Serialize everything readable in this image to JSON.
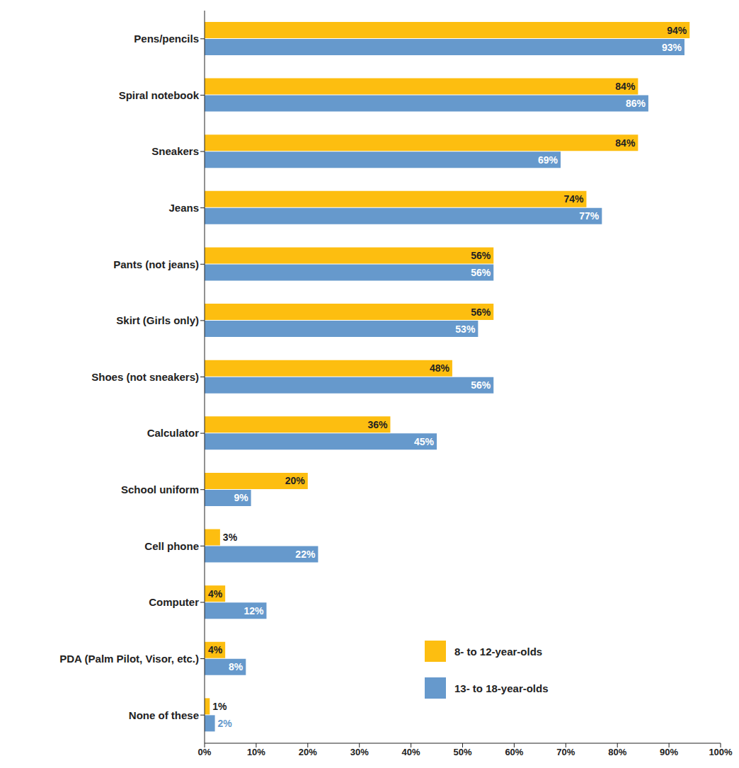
{
  "chart_data": {
    "type": "bar",
    "orientation": "horizontal",
    "grid": false,
    "data_labels": true,
    "legend": "lower right",
    "categories": [
      "Pens/pencils",
      "Spiral notebook",
      "Sneakers",
      "Jeans",
      "Pants (not jeans)",
      "Skirt (Girls only)",
      "Shoes (not sneakers)",
      "Calculator",
      "School uniform",
      "Cell phone",
      "Computer",
      "PDA (Palm Pilot, Visor, etc.)",
      "None of these"
    ],
    "series": [
      {
        "name": "8- to 12-year-olds",
        "color": "#fdbe10",
        "values": [
          94,
          84,
          84,
          74,
          56,
          56,
          48,
          36,
          20,
          3,
          4,
          4,
          1
        ],
        "value_labels": [
          "94%",
          "84%",
          "84%",
          "74%",
          "56%",
          "56%",
          "48%",
          "36%",
          "20%",
          "3%",
          "4%",
          "4%",
          "1%"
        ]
      },
      {
        "name": "13- to 18-year-olds",
        "color": "#6699cc",
        "values": [
          93,
          86,
          69,
          77,
          56,
          53,
          56,
          45,
          9,
          22,
          12,
          8,
          2
        ],
        "value_labels": [
          "93%",
          "86%",
          "69%",
          "77%",
          "56%",
          "53%",
          "56%",
          "45%",
          "9%",
          "22%",
          "12%",
          "8%",
          "2%"
        ]
      }
    ],
    "xlim": [
      0,
      100
    ],
    "xticks": [
      {
        "value": 0,
        "label": "0%"
      },
      {
        "value": 10,
        "label": "10%"
      },
      {
        "value": 20,
        "label": "20%"
      },
      {
        "value": 30,
        "label": "30%"
      },
      {
        "value": 40,
        "label": "40%"
      },
      {
        "value": 50,
        "label": "50%"
      },
      {
        "value": 60,
        "label": "60%"
      },
      {
        "value": 70,
        "label": "70%"
      },
      {
        "value": 80,
        "label": "80%"
      },
      {
        "value": 90,
        "label": "90%"
      },
      {
        "value": 100,
        "label": "100%"
      }
    ]
  }
}
